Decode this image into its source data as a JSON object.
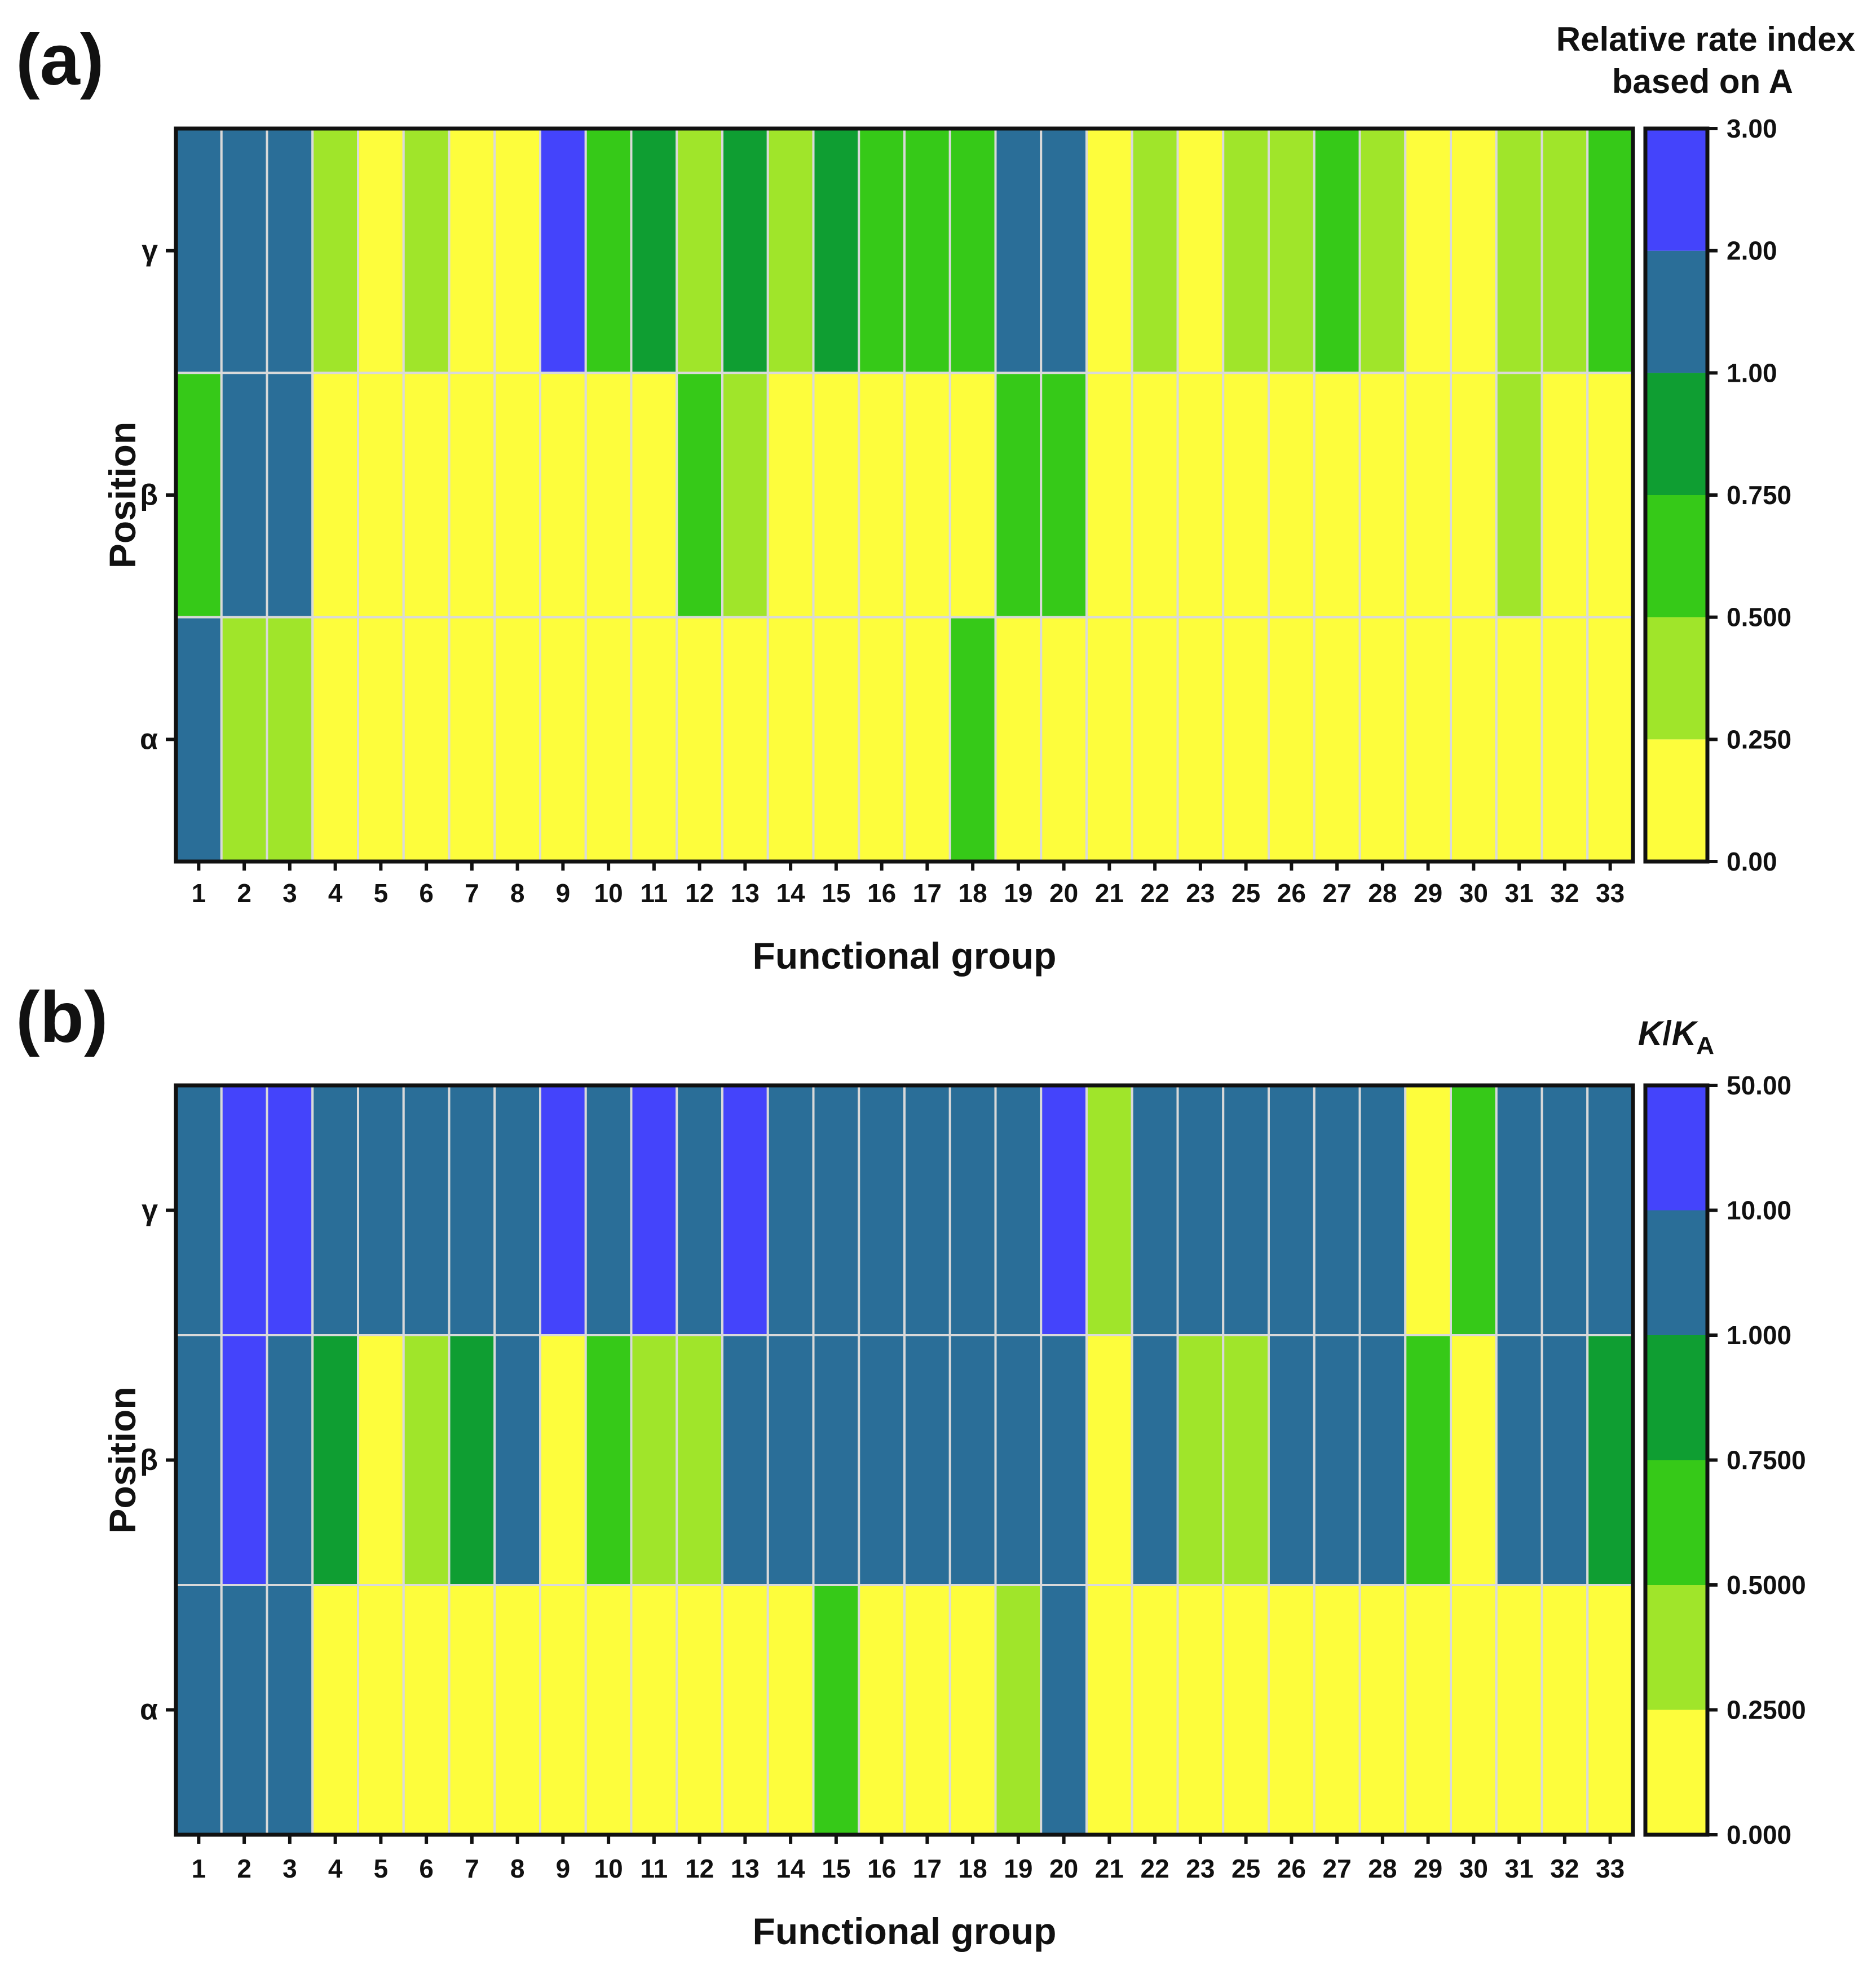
{
  "chart_data": [
    {
      "type": "heatmap",
      "panel_label": "(a)",
      "xlabel": "Functional group",
      "ylabel": "Position",
      "rows": [
        "γ",
        "β",
        "α"
      ],
      "categories": [
        "1",
        "2",
        "3",
        "4",
        "5",
        "6",
        "7",
        "8",
        "9",
        "10",
        "11",
        "12",
        "13",
        "14",
        "15",
        "16",
        "17",
        "18",
        "19",
        "20",
        "21",
        "22",
        "23",
        "25",
        "26",
        "27",
        "28",
        "29",
        "30",
        "31",
        "32",
        "33"
      ],
      "colorbar": {
        "title_lines": [
          "Relative rate index",
          "based on A"
        ],
        "title_italic": "",
        "title_sub": "",
        "title_tail": "",
        "tick_labels": [
          "0.00",
          "0.250",
          "0.500",
          "0.750",
          "1.00",
          "2.00",
          "3.00"
        ],
        "colors": [
          "#fdfd3c",
          "#a0e52a",
          "#36c918",
          "#0f9e32",
          "#2a6e98",
          "#4444fb"
        ]
      },
      "values": [
        [
          1.5,
          1.5,
          1.5,
          0.375,
          0.125,
          0.375,
          0.125,
          0.125,
          2.5,
          0.625,
          0.875,
          0.375,
          0.875,
          0.375,
          0.875,
          0.625,
          0.625,
          0.625,
          1.5,
          1.5,
          0.125,
          0.375,
          0.125,
          0.375,
          0.375,
          0.625,
          0.375,
          0.125,
          0.125,
          0.375,
          0.375,
          0.625
        ],
        [
          0.625,
          1.5,
          1.5,
          0.125,
          0.125,
          0.125,
          0.125,
          0.125,
          0.125,
          0.125,
          0.125,
          0.625,
          0.375,
          0.125,
          0.125,
          0.125,
          0.125,
          0.125,
          0.625,
          0.625,
          0.125,
          0.125,
          0.125,
          0.125,
          0.125,
          0.125,
          0.125,
          0.125,
          0.125,
          0.375,
          0.125,
          0.125
        ],
        [
          1.5,
          0.375,
          0.375,
          0.125,
          0.125,
          0.125,
          0.125,
          0.125,
          0.125,
          0.125,
          0.125,
          0.125,
          0.125,
          0.125,
          0.125,
          0.125,
          0.125,
          0.625,
          0.125,
          0.125,
          0.125,
          0.125,
          0.125,
          0.125,
          0.125,
          0.125,
          0.125,
          0.125,
          0.125,
          0.125,
          0.125,
          0.125
        ]
      ]
    },
    {
      "type": "heatmap",
      "panel_label": "(b)",
      "xlabel": "Functional group",
      "ylabel": "Position",
      "rows": [
        "γ",
        "β",
        "α"
      ],
      "categories": [
        "1",
        "2",
        "3",
        "4",
        "5",
        "6",
        "7",
        "8",
        "9",
        "10",
        "11",
        "12",
        "13",
        "14",
        "15",
        "16",
        "17",
        "18",
        "19",
        "20",
        "21",
        "22",
        "23",
        "25",
        "26",
        "27",
        "28",
        "29",
        "30",
        "31",
        "32",
        "33"
      ],
      "colorbar": {
        "title_lines": [],
        "title_italic": "K",
        "title_sub": "A",
        "title_tail": "/",
        "tick_labels": [
          "0.000",
          "0.2500",
          "0.5000",
          "0.7500",
          "1.000",
          "10.00",
          "50.00"
        ],
        "colors": [
          "#fdfd3c",
          "#a0e52a",
          "#36c918",
          "#0f9e32",
          "#2a6e98",
          "#4444fb"
        ]
      },
      "values": [
        [
          5,
          20,
          20,
          5,
          5,
          5,
          5,
          5,
          20,
          5,
          20,
          5,
          20,
          5,
          5,
          5,
          5,
          5,
          5,
          20,
          0.375,
          5,
          5,
          5,
          5,
          5,
          5,
          0.125,
          0.625,
          5,
          5,
          5
        ],
        [
          5,
          20,
          5,
          0.875,
          0.125,
          0.375,
          0.875,
          5,
          0.125,
          0.625,
          0.375,
          0.375,
          5,
          5,
          5,
          5,
          5,
          5,
          5,
          5,
          0.125,
          5,
          0.375,
          0.375,
          5,
          5,
          5,
          0.625,
          0.125,
          5,
          5,
          0.875
        ],
        [
          5,
          5,
          5,
          0.125,
          0.125,
          0.125,
          0.125,
          0.125,
          0.125,
          0.125,
          0.125,
          0.125,
          0.125,
          0.125,
          0.625,
          0.125,
          0.125,
          0.125,
          0.375,
          5,
          0.125,
          0.125,
          0.125,
          0.125,
          0.125,
          0.125,
          0.125,
          0.125,
          0.125,
          0.125,
          0.125,
          0.125
        ]
      ]
    }
  ]
}
